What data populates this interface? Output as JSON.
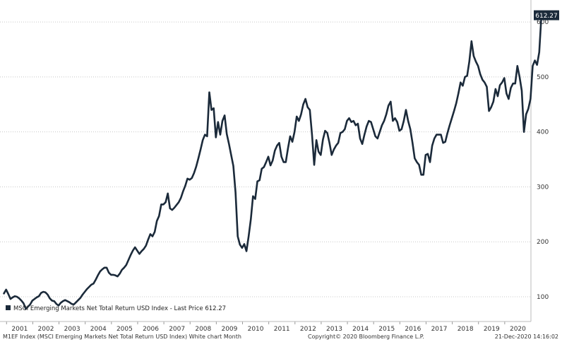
{
  "chart_data": {
    "type": "line",
    "title": "",
    "xlabel": "",
    "ylabel": "",
    "x_start": 2000.9,
    "x_range": [
      2000.75,
      2021.0
    ],
    "ylim": [
      55,
      640
    ],
    "y_ticks": [
      100,
      200,
      300,
      400,
      500,
      600
    ],
    "x_ticks": [
      "2001",
      "2002",
      "2003",
      "2004",
      "2005",
      "2006",
      "2007",
      "2008",
      "2009",
      "2010",
      "2011",
      "2012",
      "2013",
      "2014",
      "2015",
      "2016",
      "2017",
      "2018",
      "2019",
      "2020"
    ],
    "grid": "horizontal dotted",
    "legend_position": "bottom-left",
    "series": [
      {
        "name": "MSCI Emerging Markets Net Total Return USD Index - Last Price 612.27",
        "color": "#1b2a3a",
        "last_value": "612.27",
        "values": [
          106,
          113,
          105,
          96,
          99,
          101,
          100,
          97,
          93,
          88,
          78,
          82,
          86,
          93,
          96,
          99,
          101,
          107,
          109,
          108,
          104,
          97,
          93,
          92,
          87,
          84,
          89,
          92,
          94,
          92,
          90,
          87,
          86,
          90,
          94,
          98,
          104,
          109,
          114,
          118,
          122,
          124,
          131,
          139,
          146,
          150,
          153,
          153,
          144,
          140,
          140,
          139,
          137,
          142,
          149,
          153,
          158,
          167,
          176,
          184,
          190,
          184,
          178,
          183,
          187,
          193,
          204,
          214,
          210,
          218,
          238,
          247,
          268,
          268,
          272,
          288,
          261,
          258,
          262,
          267,
          272,
          280,
          292,
          302,
          315,
          313,
          316,
          325,
          337,
          352,
          368,
          385,
          395,
          392,
          472,
          440,
          443,
          390,
          418,
          395,
          420,
          430,
          396,
          378,
          358,
          338,
          290,
          210,
          195,
          189,
          196,
          183,
          210,
          241,
          283,
          278,
          310,
          312,
          333,
          336,
          345,
          355,
          339,
          348,
          366,
          375,
          380,
          355,
          345,
          345,
          370,
          392,
          382,
          400,
          428,
          420,
          432,
          450,
          460,
          445,
          440,
          395,
          340,
          385,
          364,
          358,
          386,
          402,
          398,
          380,
          358,
          368,
          375,
          380,
          398,
          400,
          405,
          420,
          425,
          418,
          420,
          412,
          415,
          388,
          378,
          395,
          410,
          420,
          418,
          405,
          392,
          388,
          400,
          412,
          420,
          432,
          448,
          455,
          420,
          425,
          418,
          402,
          405,
          420,
          440,
          420,
          405,
          380,
          352,
          345,
          340,
          322,
          322,
          358,
          360,
          345,
          375,
          388,
          395,
          395,
          395,
          380,
          382,
          398,
          412,
          425,
          438,
          452,
          470,
          490,
          484,
          500,
          502,
          528,
          565,
          538,
          528,
          520,
          505,
          495,
          490,
          482,
          438,
          445,
          455,
          478,
          465,
          485,
          490,
          498,
          470,
          460,
          480,
          488,
          488,
          520,
          500,
          475,
          400,
          432,
          442,
          460,
          520,
          530,
          522,
          545,
          612.27
        ]
      }
    ],
    "footer": {
      "left": "M1EF Index (MSCI Emerging Markets Net Total Return USD Index) White chart  Month",
      "center": "Copyright© 2020 Bloomberg Finance L.P.",
      "right": "21-Dec-2020 14:16:02"
    }
  }
}
